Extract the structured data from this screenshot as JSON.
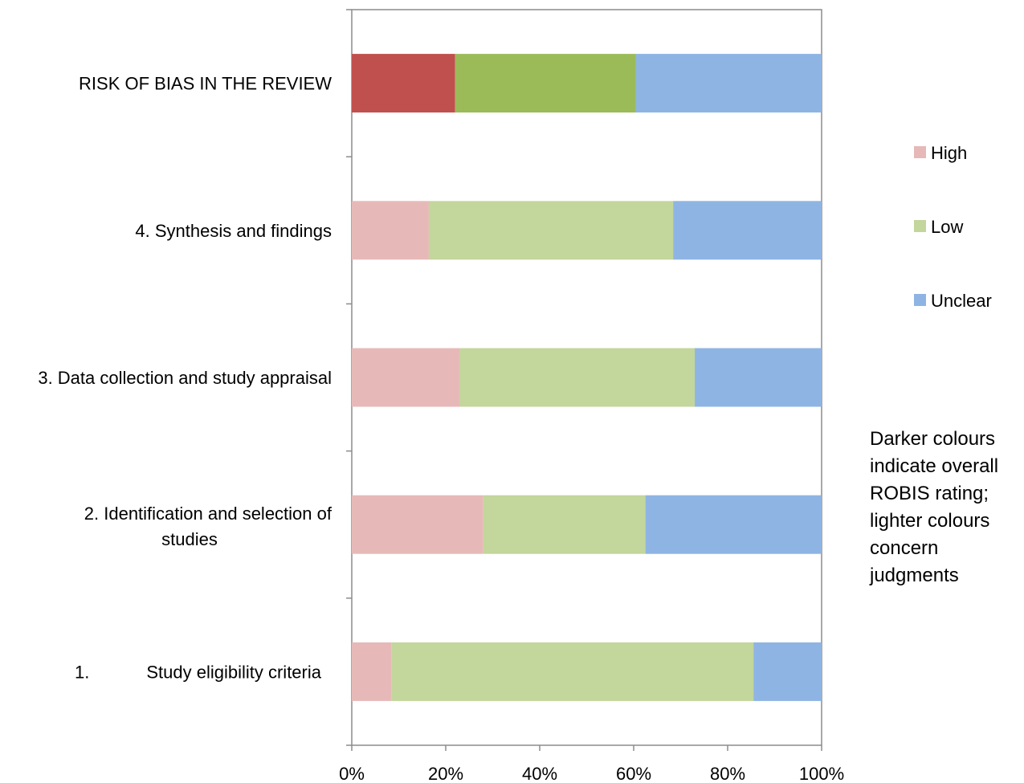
{
  "chart_data": {
    "type": "bar",
    "orientation": "horizontal",
    "stacked": "percent",
    "categories": [
      [
        "RISK OF BIAS IN THE REVIEW"
      ],
      [
        "4.  Synthesis and findings"
      ],
      [
        "3. Data collection and study appraisal"
      ],
      [
        "2.  Identification and selection of",
        "studies"
      ],
      [
        "1.",
        "Study eligibility criteria"
      ]
    ],
    "series": [
      {
        "name": "High",
        "values": [
          22,
          16.4,
          23,
          28,
          8.5
        ],
        "colors": [
          "#c0504d",
          "#e6b9b8",
          "#e6b9b8",
          "#e6b9b8",
          "#e6b9b8"
        ]
      },
      {
        "name": "Low",
        "values": [
          38.5,
          52,
          50,
          34.5,
          77
        ],
        "colors": [
          "#9bbb59",
          "#c3d69b",
          "#c3d69b",
          "#c3d69b",
          "#c3d69b"
        ]
      },
      {
        "name": "Unclear",
        "values": [
          39.5,
          31.6,
          27,
          37.5,
          14.5
        ],
        "colors": [
          "#8eb4e3",
          "#8eb4e3",
          "#8eb4e3",
          "#8eb4e3",
          "#8eb4e3"
        ]
      }
    ],
    "xlim": [
      0,
      100
    ],
    "xticks": [
      "0%",
      "20%",
      "40%",
      "60%",
      "80%",
      "100%"
    ],
    "legend": {
      "position": "right",
      "entries": [
        {
          "label": "High",
          "color": "#e6b9b8"
        },
        {
          "label": "Low",
          "color": "#c3d69b"
        },
        {
          "label": "Unclear",
          "color": "#8eb4e3"
        }
      ]
    },
    "grid": false
  },
  "note": [
    "Darker colours",
    "indicate overall",
    "ROBIS rating;",
    "lighter colours",
    "concern",
    "judgments"
  ]
}
